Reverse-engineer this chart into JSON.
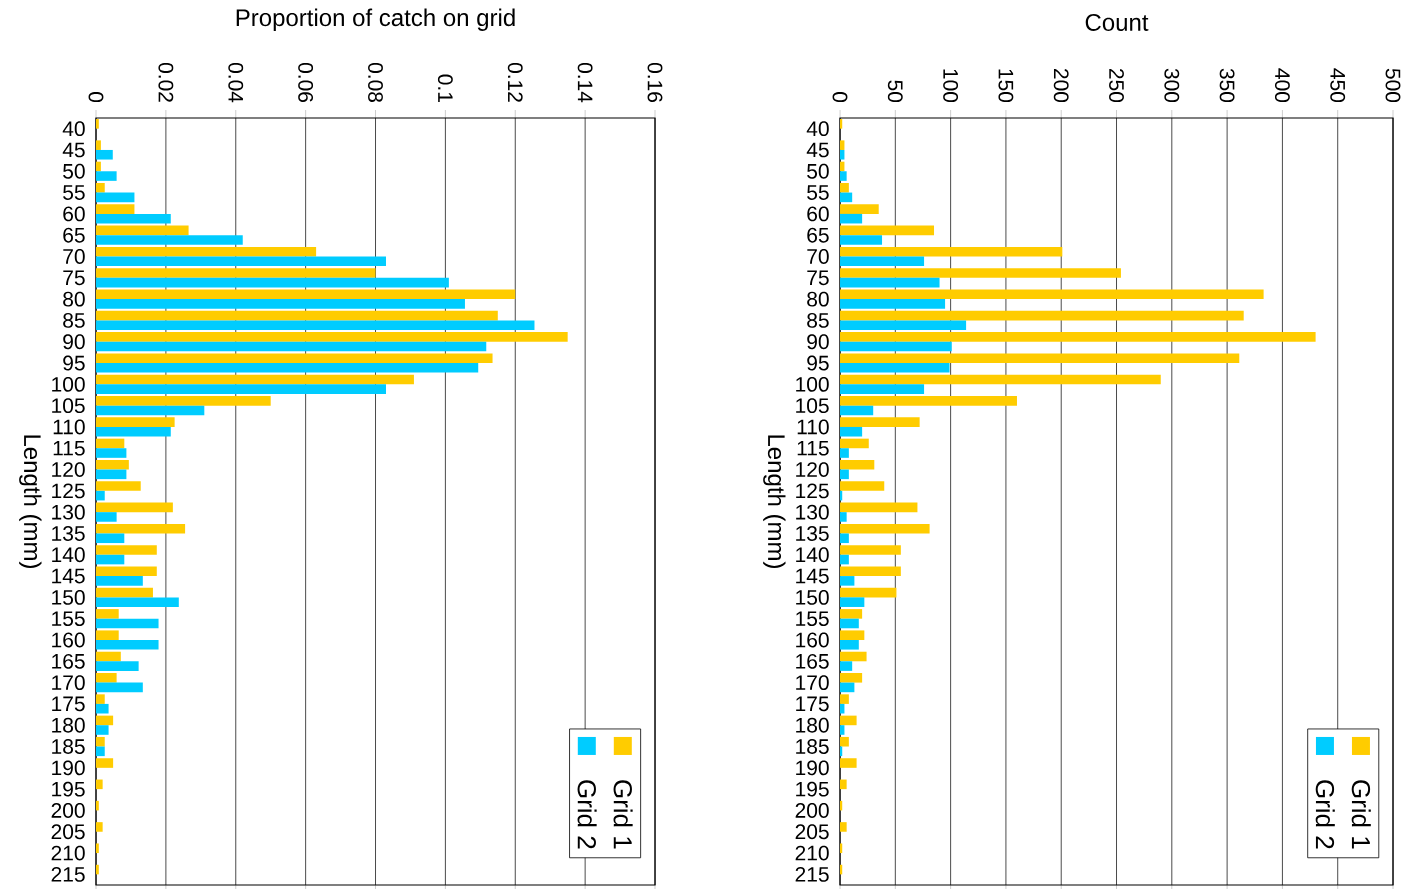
{
  "chart_data": [
    {
      "type": "bar",
      "orientation": "horizontal",
      "xlabel": "Proportion of catch on grid",
      "ylabel": "Length (mm)",
      "categories": [
        "40",
        "45",
        "50",
        "55",
        "60",
        "65",
        "70",
        "75",
        "80",
        "85",
        "90",
        "95",
        "100",
        "105",
        "110",
        "115",
        "120",
        "125",
        "130",
        "135",
        "140",
        "145",
        "150",
        "155",
        "160",
        "165",
        "170",
        "175",
        "180",
        "185",
        "190",
        "195",
        "200",
        "205",
        "210",
        "215"
      ],
      "series": [
        {
          "name": "Grid 1",
          "color": "#ffcc00",
          "values": [
            0.0008,
            0.0014,
            0.0014,
            0.0025,
            0.011,
            0.0265,
            0.063,
            0.08,
            0.12,
            0.115,
            0.135,
            0.1135,
            0.091,
            0.05,
            0.0225,
            0.0081,
            0.0094,
            0.0128,
            0.022,
            0.0255,
            0.0174,
            0.0174,
            0.0163,
            0.0065,
            0.0065,
            0.0071,
            0.0059,
            0.0025,
            0.0049,
            0.0025,
            0.0049,
            0.0019,
            0.0008,
            0.0019,
            0.0008,
            0.0008
          ]
        },
        {
          "name": "Grid 2",
          "color": "#00ccff",
          "values": [
            0,
            0.0048,
            0.0059,
            0.011,
            0.0214,
            0.042,
            0.083,
            0.101,
            0.1056,
            0.1255,
            0.1117,
            0.1094,
            0.083,
            0.031,
            0.0214,
            0.0087,
            0.0087,
            0.0025,
            0.0059,
            0.0081,
            0.0081,
            0.0134,
            0.0237,
            0.0179,
            0.0179,
            0.0122,
            0.0134,
            0.0036,
            0.0036,
            0.0025,
            0,
            0,
            0,
            0,
            0,
            0
          ]
        }
      ],
      "xlim": [
        0,
        0.16
      ],
      "xticks": [
        0,
        0.02,
        0.04,
        0.06,
        0.08,
        0.1,
        0.12,
        0.14,
        0.16
      ],
      "grid": "x",
      "legend": "bottom right"
    },
    {
      "type": "bar",
      "orientation": "horizontal",
      "xlabel": "Count",
      "ylabel": "Length (mm)",
      "categories": [
        "40",
        "45",
        "50",
        "55",
        "60",
        "65",
        "70",
        "75",
        "80",
        "85",
        "90",
        "95",
        "100",
        "105",
        "110",
        "115",
        "120",
        "125",
        "130",
        "135",
        "140",
        "145",
        "150",
        "155",
        "160",
        "165",
        "170",
        "175",
        "180",
        "185",
        "190",
        "195",
        "200",
        "205",
        "210",
        "215"
      ],
      "series": [
        {
          "name": "Grid 1",
          "color": "#ffcc00",
          "values": [
            2,
            4,
            4,
            8,
            35,
            85,
            201,
            254,
            383,
            365,
            430,
            361,
            290,
            160,
            72,
            26,
            31,
            40,
            70,
            81,
            55,
            55,
            51,
            20,
            22,
            24,
            20,
            8,
            15,
            8,
            15,
            6,
            2,
            6,
            2,
            2
          ]
        },
        {
          "name": "Grid 2",
          "color": "#00ccff",
          "values": [
            0,
            4,
            6,
            11,
            20,
            38,
            76,
            90,
            95,
            114,
            101,
            99,
            76,
            30,
            20,
            8,
            8,
            2,
            6,
            8,
            8,
            13,
            22,
            17,
            17,
            11,
            13,
            4,
            4,
            2,
            0,
            0,
            0,
            0,
            0,
            0
          ]
        }
      ],
      "xlim": [
        0,
        500
      ],
      "xticks": [
        0,
        50,
        100,
        150,
        200,
        250,
        300,
        350,
        400,
        450,
        500
      ],
      "grid": "x",
      "legend": "bottom right"
    }
  ]
}
